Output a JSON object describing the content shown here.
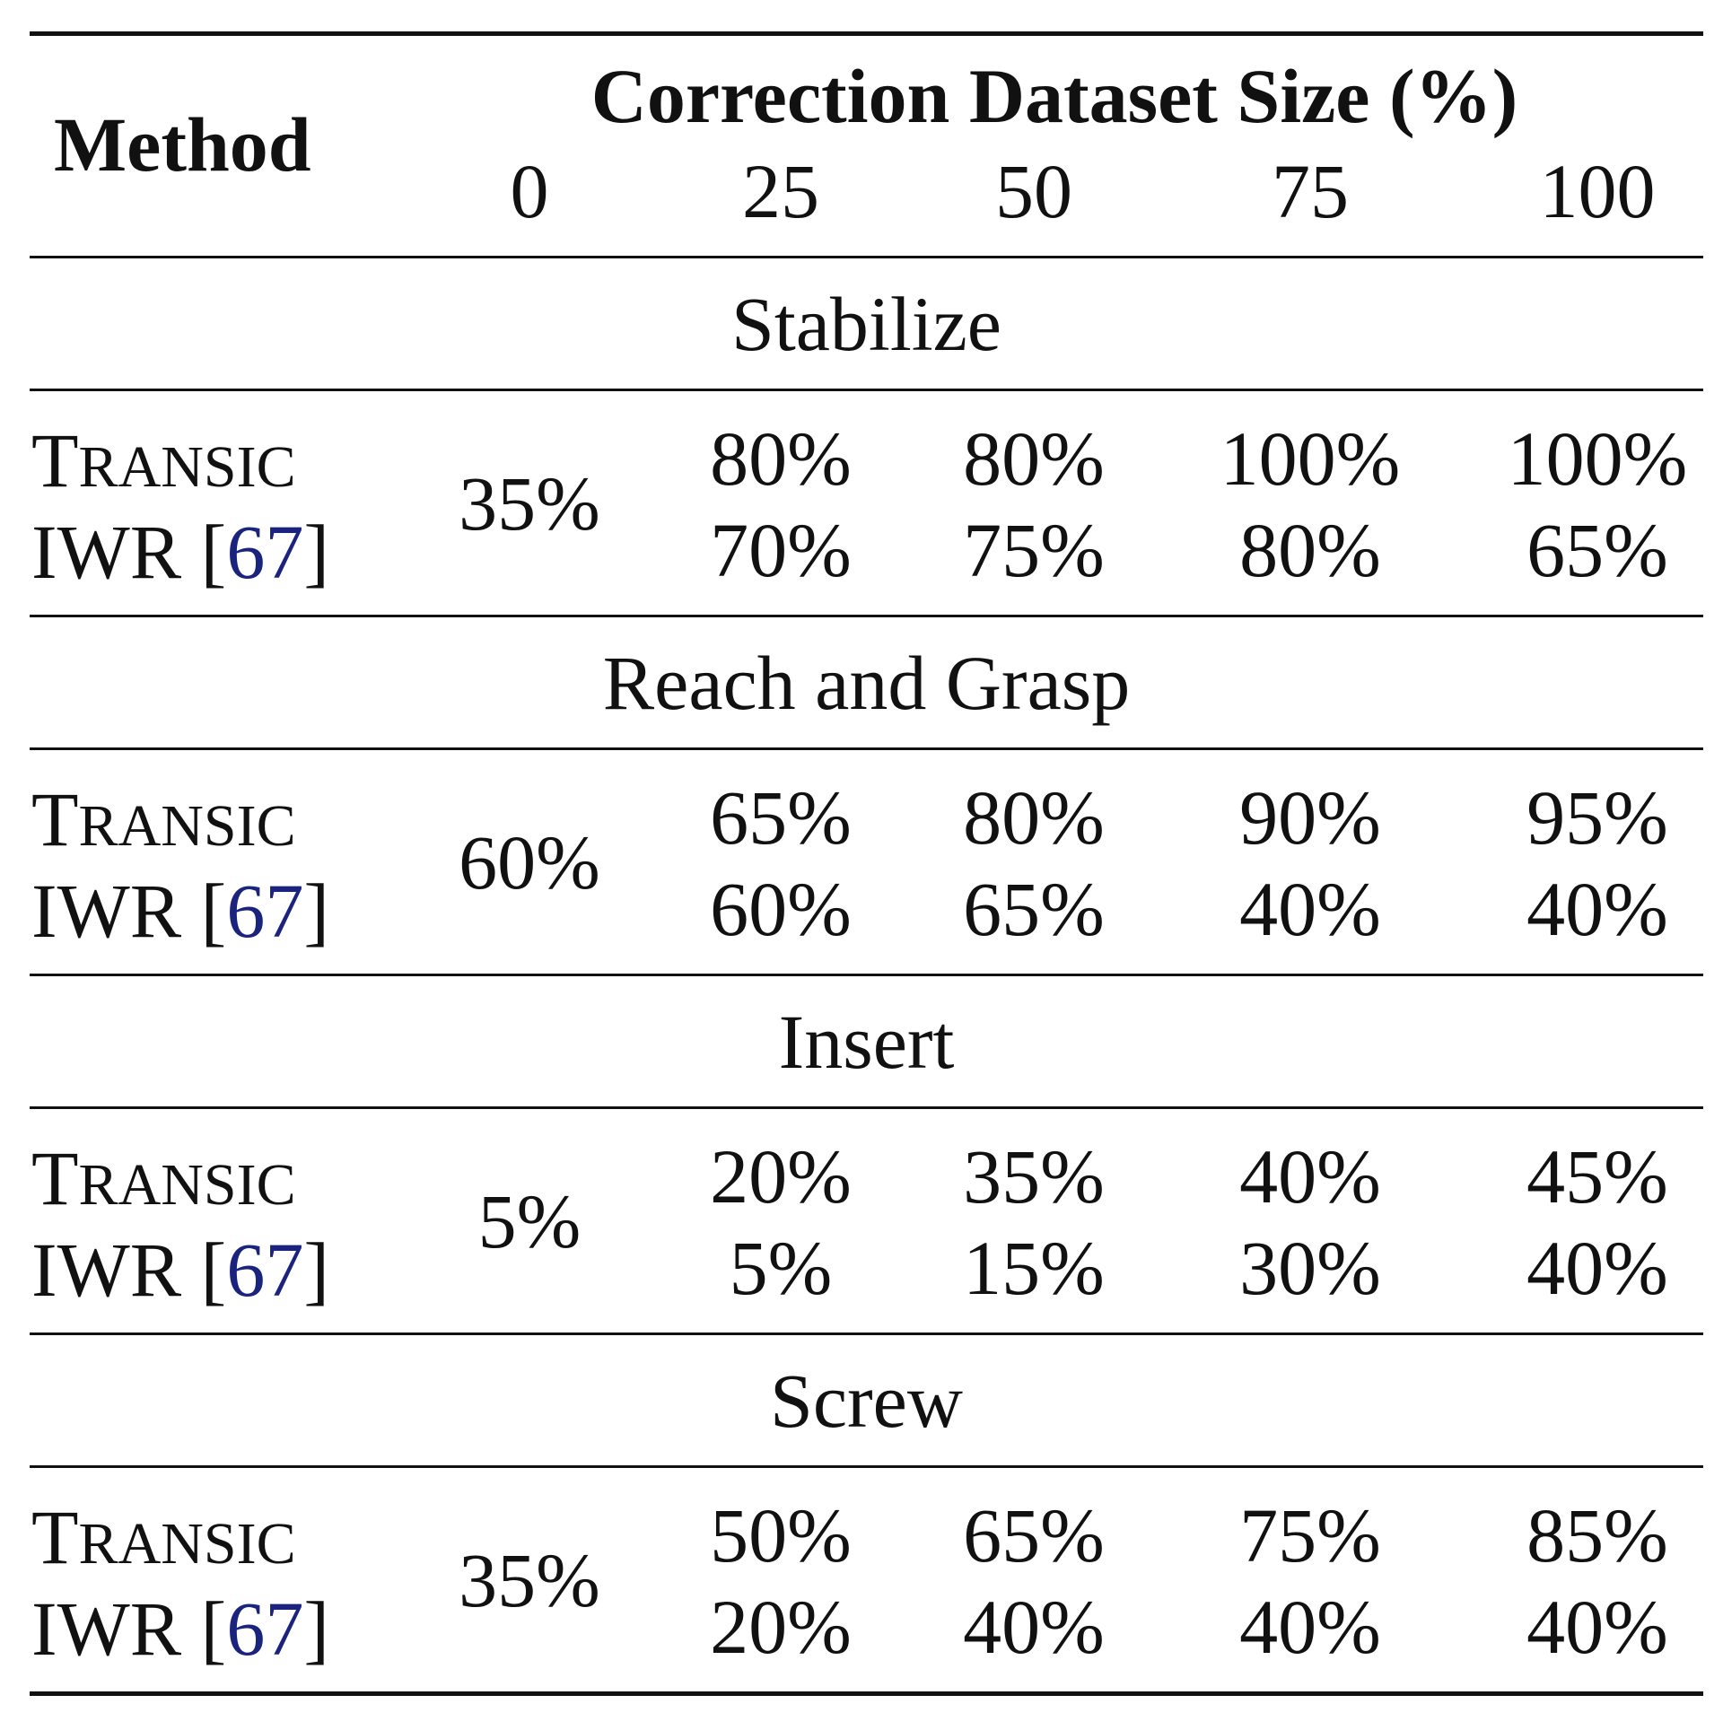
{
  "table": {
    "method_header": "Method",
    "group_header": "Correction Dataset Size (%)",
    "columns": [
      "0",
      "25",
      "50",
      "75",
      "100"
    ],
    "method_names": {
      "transic_first": "T",
      "transic_rest": "RANSIC",
      "iwr_prefix": "IWR [",
      "iwr_cite": "67",
      "iwr_suffix": "]"
    },
    "sections": [
      {
        "title": "Stabilize",
        "shared_0": "35%",
        "transic": [
          "80%",
          "80%",
          "100%",
          "100%"
        ],
        "iwr": [
          "70%",
          "75%",
          "80%",
          "65%"
        ]
      },
      {
        "title": "Reach and Grasp",
        "shared_0": "60%",
        "transic": [
          "65%",
          "80%",
          "90%",
          "95%"
        ],
        "iwr": [
          "60%",
          "65%",
          "40%",
          "40%"
        ]
      },
      {
        "title": "Insert",
        "shared_0": "5%",
        "transic": [
          "20%",
          "35%",
          "40%",
          "45%"
        ],
        "iwr": [
          "5%",
          "15%",
          "30%",
          "40%"
        ]
      },
      {
        "title": "Screw",
        "shared_0": "35%",
        "transic": [
          "50%",
          "65%",
          "75%",
          "85%"
        ],
        "iwr": [
          "20%",
          "40%",
          "40%",
          "40%"
        ]
      }
    ]
  }
}
